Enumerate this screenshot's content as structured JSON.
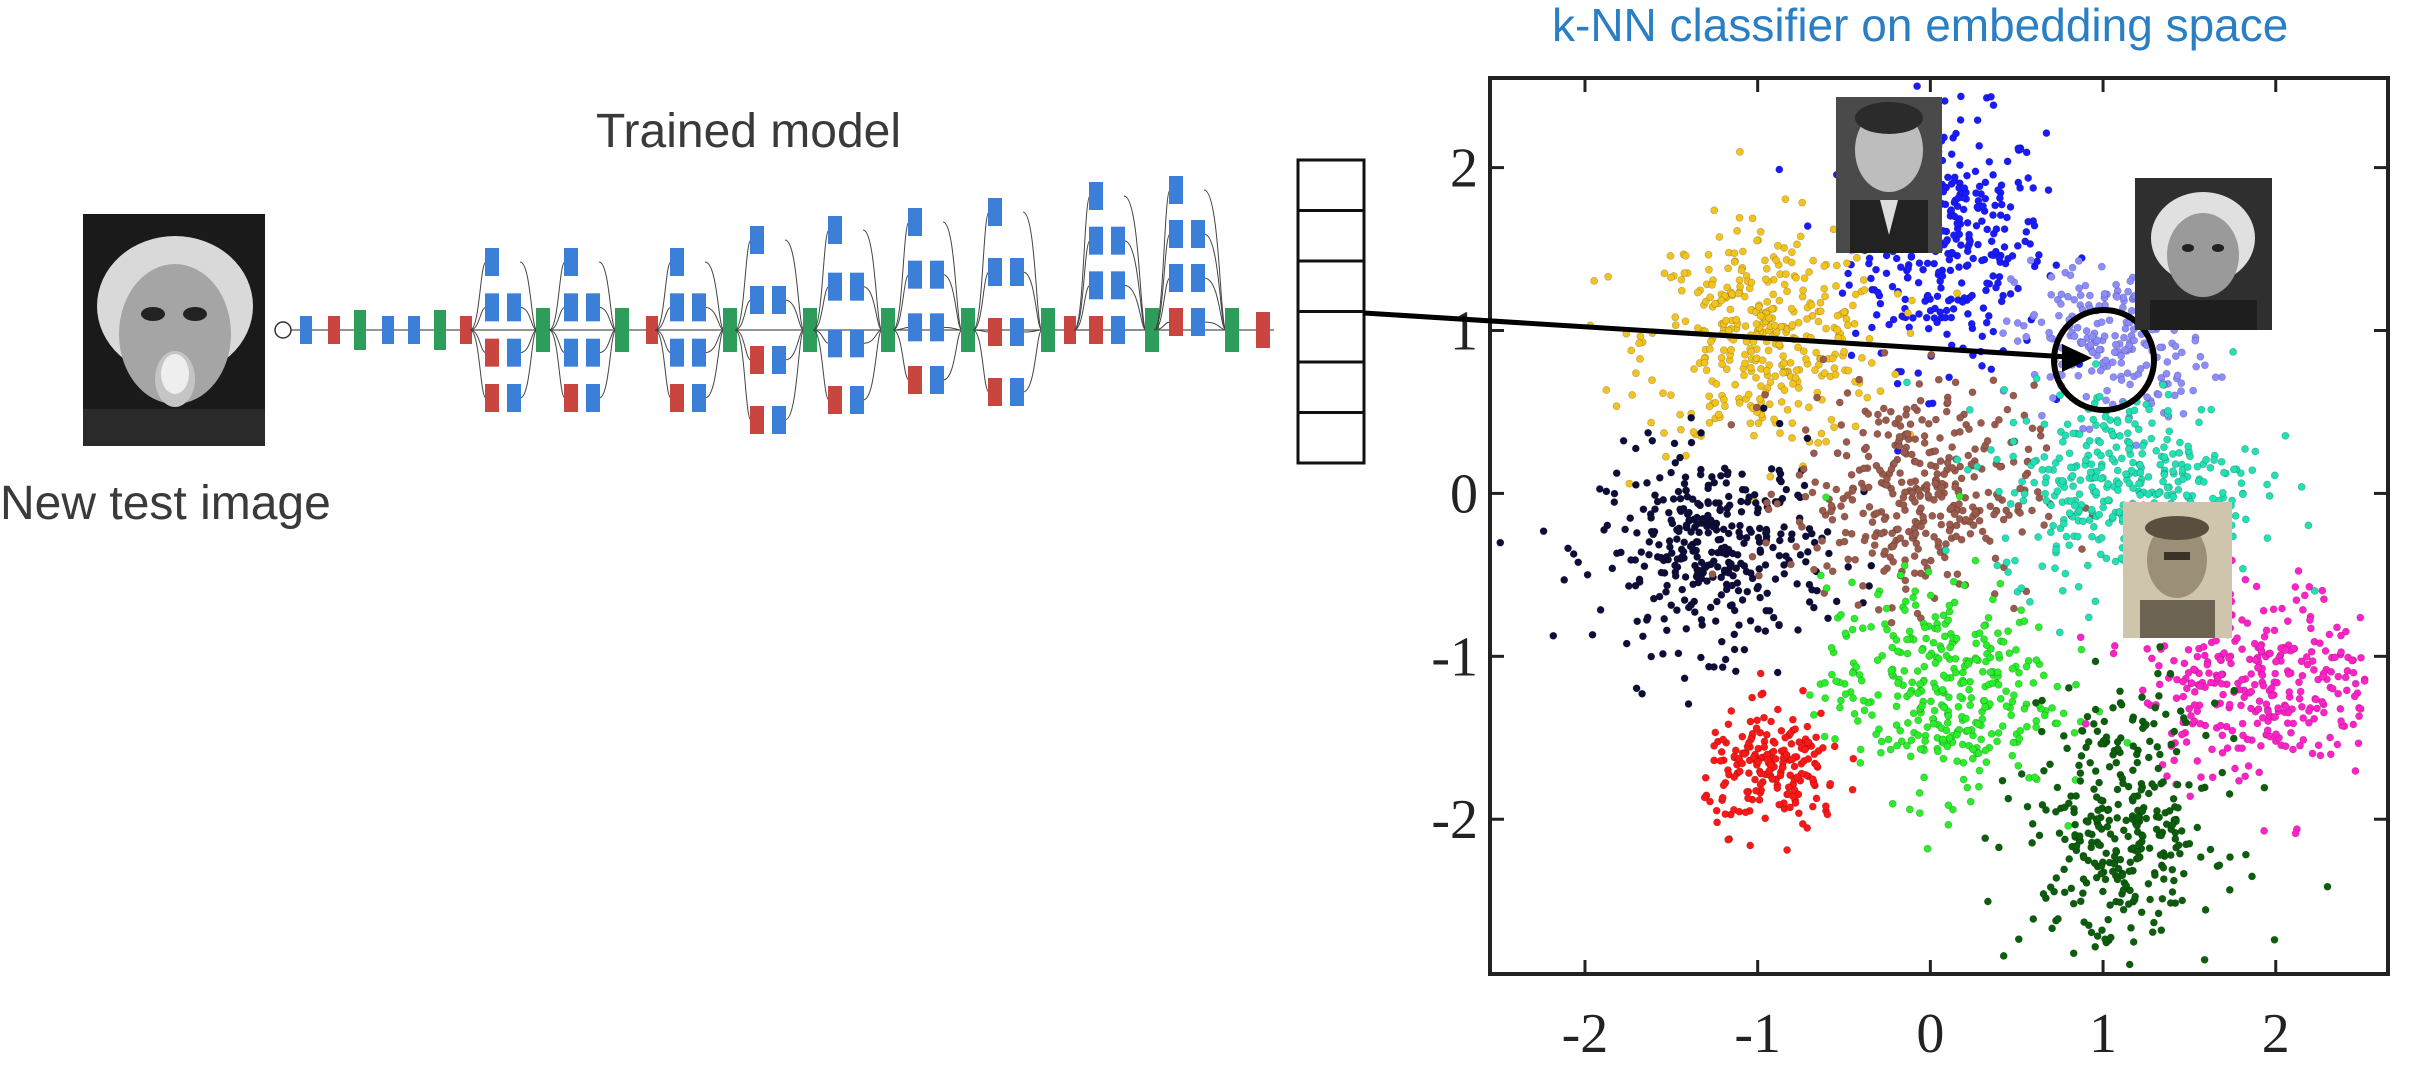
{
  "labels": {
    "trained_model": "Trained model",
    "new_test_image": "New test image",
    "plot_title": "k-NN classifier on embedding space"
  },
  "network_pictogram": {
    "colors": {
      "conv": "#3b7fd9",
      "pool": "#c94540",
      "concat": "#2e9c5a"
    }
  },
  "embedding_vector": {
    "cells": 6,
    "highlighted_cell": 4
  },
  "photos": [
    {
      "name": "test-image-photo",
      "tone": "#7a7a7a"
    },
    {
      "name": "cluster-photo-blue",
      "tone": "#666666"
    },
    {
      "name": "cluster-photo-lavender",
      "tone": "#5a5a5a"
    },
    {
      "name": "cluster-photo-magenta",
      "tone": "#9a8a6a"
    }
  ],
  "chart_data": {
    "type": "scatter",
    "title": "k-NN classifier on embedding space",
    "xlim": [
      -2.55,
      2.65
    ],
    "ylim": [
      -2.95,
      2.55
    ],
    "xticks": [
      "-2",
      "-1",
      "0",
      "1",
      "2"
    ],
    "yticks": [
      "2",
      "1",
      "0",
      "-1",
      "-2"
    ],
    "xtick_values": [
      -2,
      -1,
      0,
      1,
      2
    ],
    "ytick_values": [
      2,
      1,
      0,
      -1,
      -2
    ],
    "clusters": [
      {
        "color": "#1a1aff",
        "cx": 0.1,
        "cy": 1.55,
        "sx": 0.28,
        "sy": 0.38,
        "n": 340
      },
      {
        "color": "#f2c31c",
        "cx": -0.95,
        "cy": 0.95,
        "sx": 0.35,
        "sy": 0.35,
        "n": 380
      },
      {
        "color": "#8c8cff",
        "cx": 1.05,
        "cy": 0.95,
        "sx": 0.28,
        "sy": 0.25,
        "n": 220
      },
      {
        "color": "#0d0d3a",
        "cx": -1.25,
        "cy": -0.35,
        "sx": 0.33,
        "sy": 0.3,
        "n": 360
      },
      {
        "color": "#9a5a4c",
        "cx": -0.1,
        "cy": 0.0,
        "sx": 0.35,
        "sy": 0.33,
        "n": 380
      },
      {
        "color": "#21e0b3",
        "cx": 1.15,
        "cy": 0.05,
        "sx": 0.38,
        "sy": 0.3,
        "n": 380
      },
      {
        "color": "#29ee29",
        "cx": 0.05,
        "cy": -1.2,
        "sx": 0.33,
        "sy": 0.33,
        "n": 360
      },
      {
        "color": "#ff22c8",
        "cx": 1.9,
        "cy": -1.15,
        "sx": 0.35,
        "sy": 0.3,
        "n": 340
      },
      {
        "color": "#ff1616",
        "cx": -0.9,
        "cy": -1.7,
        "sx": 0.2,
        "sy": 0.18,
        "n": 200
      },
      {
        "color": "#0b5e0b",
        "cx": 1.1,
        "cy": -2.05,
        "sx": 0.28,
        "sy": 0.4,
        "n": 340
      }
    ],
    "query_point": {
      "x": 1.05,
      "y": 0.9
    }
  }
}
